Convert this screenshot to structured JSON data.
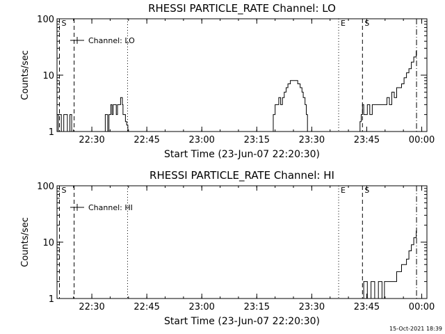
{
  "footer_timestamp": "15-Oct-2021 18:39",
  "chart_data": [
    {
      "type": "line",
      "title": "RHESSI PARTICLE_RATE Channel: LO",
      "xlabel": "Start Time (23-Jun-07 22:20:30)",
      "ylabel": "Counts/sec",
      "xlim": [
        0,
        6055
      ],
      "ylim": [
        1,
        100
      ],
      "yscale": "log",
      "grid": false,
      "legend_position": "top-left",
      "x_ticks": [
        {
          "x": 570,
          "label": "22:30"
        },
        {
          "x": 1470,
          "label": "22:45"
        },
        {
          "x": 2370,
          "label": "23:00"
        },
        {
          "x": 3270,
          "label": "23:15"
        },
        {
          "x": 4170,
          "label": "23:30"
        },
        {
          "x": 5070,
          "label": "23:45"
        },
        {
          "x": 5970,
          "label": "00:00"
        }
      ],
      "y_ticks": [
        {
          "y": 1,
          "label": "1"
        },
        {
          "y": 10,
          "label": "10"
        },
        {
          "y": 100,
          "label": "100"
        }
      ],
      "vlines": [
        {
          "x": 40,
          "style": "dashed",
          "label": "S"
        },
        {
          "x": 280,
          "style": "dashed",
          "label": ""
        },
        {
          "x": 1155,
          "style": "dotted",
          "label": ""
        },
        {
          "x": 4610,
          "style": "dotted",
          "label": "E"
        },
        {
          "x": 5000,
          "style": "dashed",
          "label": "S"
        },
        {
          "x": 5885,
          "style": "dashdot",
          "label": ""
        }
      ],
      "series": [
        {
          "name": "Channel: LO",
          "segments": [
            {
              "x": [
                0,
                20,
                60,
                70,
                100,
                110,
                160,
                170,
                200,
                210,
                230,
                240,
                250
              ],
              "y": [
                1,
                2,
                2,
                1,
                1,
                2,
                2,
                1,
                1,
                2,
                2,
                1,
                1
              ]
            },
            {
              "x": [
                780,
                790,
                830,
                850,
                880,
                900,
                920,
                950,
                970,
                990,
                1020,
                1040,
                1070,
                1080,
                1100,
                1120,
                1140,
                1160
              ],
              "y": [
                1,
                2,
                1,
                2,
                3,
                2,
                3,
                3,
                2,
                3,
                3,
                4,
                3,
                2,
                2,
                1.5,
                1.3,
                1
              ]
            },
            {
              "x": [
                3520,
                3540,
                3570,
                3600,
                3630,
                3660,
                3690,
                3720,
                3750,
                3780,
                3820,
                3860,
                3900,
                3940,
                3980,
                4010,
                4030,
                4060,
                4080,
                4100
              ],
              "y": [
                1,
                2,
                3,
                3,
                4,
                3,
                4,
                5,
                6,
                7,
                8,
                8,
                8,
                7,
                6,
                5,
                4,
                3,
                2,
                1
              ]
            },
            {
              "x": [
                4930,
                4960,
                4980,
                5000,
                5020,
                5040,
                5080,
                5120,
                5160,
                5200,
                5240,
                5280,
                5320,
                5360,
                5400,
                5440,
                5480,
                5520,
                5560,
                5600,
                5640,
                5680,
                5720,
                5760,
                5800,
                5840,
                5880
              ],
              "y": [
                1,
                1.5,
                2,
                3,
                2,
                2,
                3,
                2,
                3,
                3,
                3,
                3,
                3,
                3,
                4,
                3,
                5,
                4,
                6,
                6,
                7,
                9,
                11,
                13,
                17,
                21,
                27
              ]
            }
          ]
        }
      ]
    },
    {
      "type": "line",
      "title": "RHESSI PARTICLE_RATE Channel: HI",
      "xlabel": "Start Time (23-Jun-07 22:20:30)",
      "ylabel": "Counts/sec",
      "xlim": [
        0,
        6055
      ],
      "ylim": [
        1,
        100
      ],
      "yscale": "log",
      "grid": false,
      "legend_position": "top-left",
      "x_ticks": [
        {
          "x": 570,
          "label": "22:30"
        },
        {
          "x": 1470,
          "label": "22:45"
        },
        {
          "x": 2370,
          "label": "23:00"
        },
        {
          "x": 3270,
          "label": "23:15"
        },
        {
          "x": 4170,
          "label": "23:30"
        },
        {
          "x": 5070,
          "label": "23:45"
        },
        {
          "x": 5970,
          "label": "00:00"
        }
      ],
      "y_ticks": [
        {
          "y": 1,
          "label": "1"
        },
        {
          "y": 10,
          "label": "10"
        },
        {
          "y": 100,
          "label": "100"
        }
      ],
      "vlines": [
        {
          "x": 40,
          "style": "dashed",
          "label": "S"
        },
        {
          "x": 280,
          "style": "dashed",
          "label": ""
        },
        {
          "x": 1155,
          "style": "dotted",
          "label": ""
        },
        {
          "x": 4610,
          "style": "dotted",
          "label": "E"
        },
        {
          "x": 5000,
          "style": "dashed",
          "label": "S"
        },
        {
          "x": 5885,
          "style": "dashdot",
          "label": ""
        }
      ],
      "series": [
        {
          "name": "Channel: HI",
          "segments": [
            {
              "x": [
                5000,
                5020,
                5060,
                5080,
                5120,
                5140,
                5180,
                5200,
                5240,
                5260,
                5300,
                5320,
                5360,
                5400,
                5440,
                5480,
                5520,
                5560,
                5600,
                5640,
                5680,
                5720,
                5760,
                5800,
                5840,
                5880
              ],
              "y": [
                1,
                2,
                2,
                1,
                1,
                2,
                2,
                1,
                1,
                2,
                2,
                1,
                2,
                2,
                2,
                2,
                2,
                3,
                3,
                4,
                4,
                5,
                7,
                9,
                12,
                16
              ]
            }
          ]
        }
      ]
    }
  ]
}
